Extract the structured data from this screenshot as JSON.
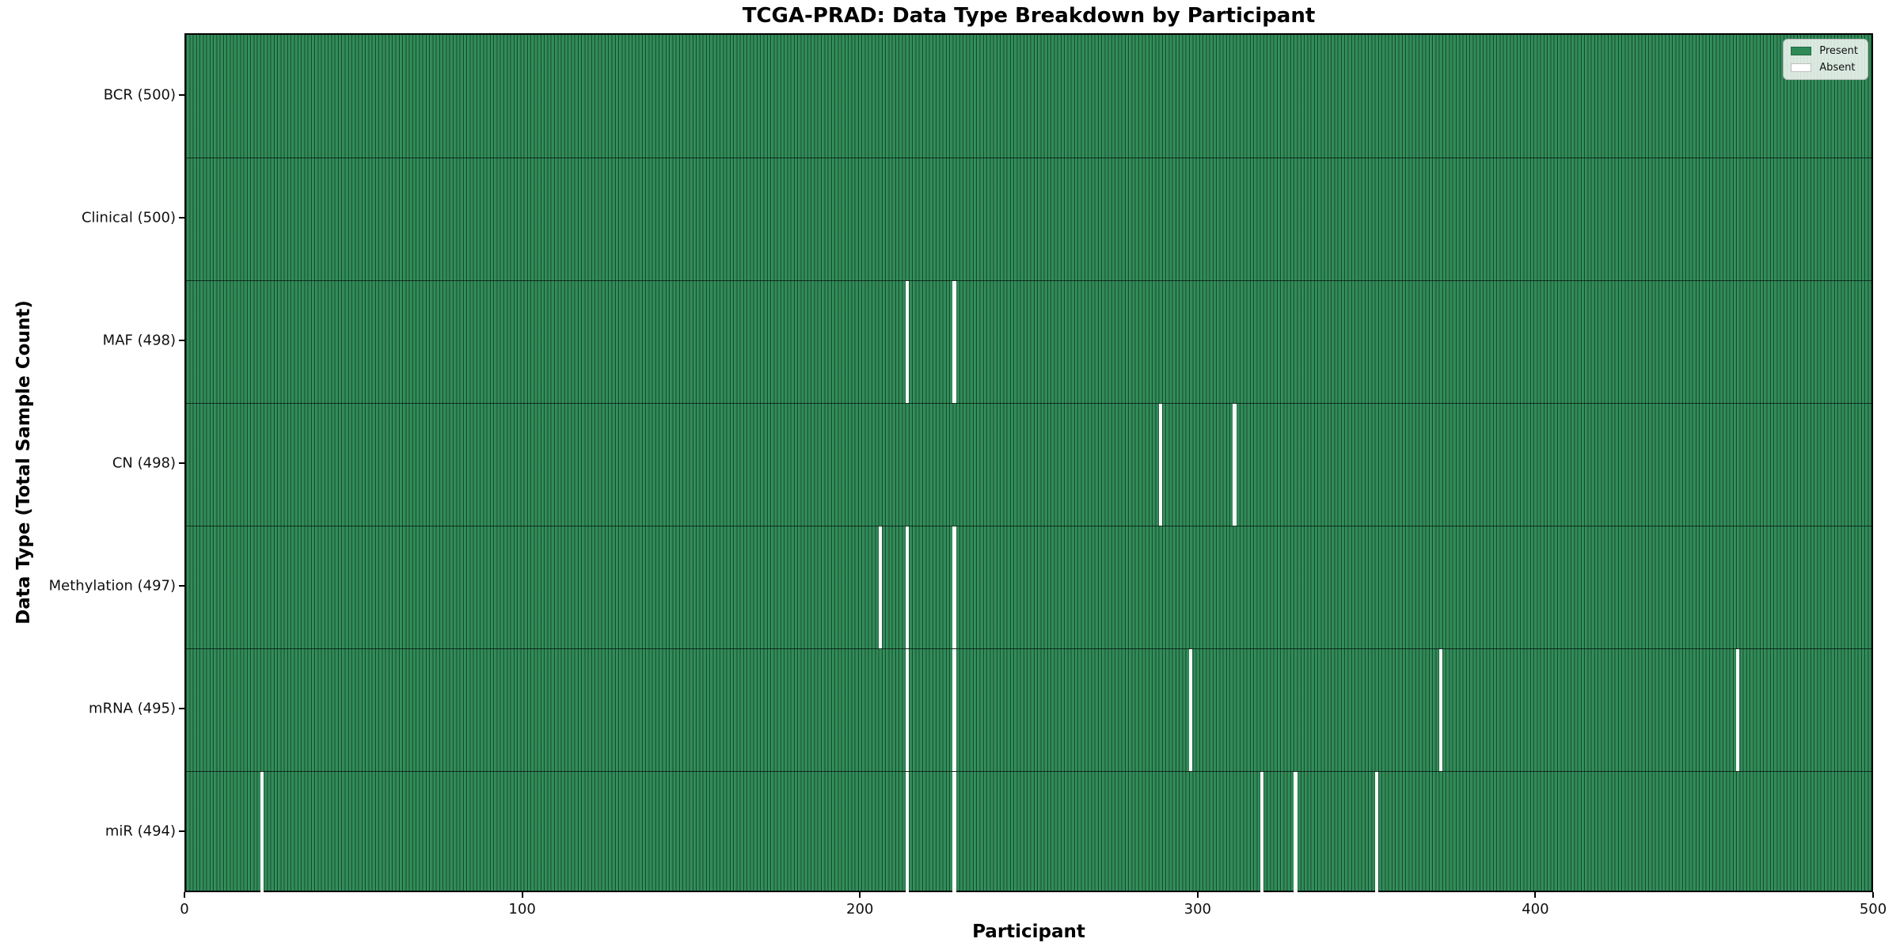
{
  "chart_data": {
    "type": "heatmap",
    "title": "TCGA-PRAD: Data Type Breakdown by Participant",
    "xlabel": "Participant",
    "ylabel": "Data Type (Total Sample Count)",
    "x_ticks": [
      0,
      100,
      200,
      300,
      400,
      500
    ],
    "x_range": [
      0,
      500
    ],
    "n_participants": 500,
    "grid": false,
    "colors": {
      "present": "#2e8b57",
      "absent": "#ffffff"
    },
    "legend": {
      "position": "upper right",
      "entries": [
        {
          "name": "present",
          "label": "Present",
          "color": "#2e8b57"
        },
        {
          "name": "absent",
          "label": "Absent",
          "color": "#ffffff"
        }
      ]
    },
    "rows": [
      {
        "name": "bcr",
        "label": "BCR (500)",
        "data_type": "BCR",
        "total": 500,
        "absent_participants": []
      },
      {
        "name": "clinical",
        "label": "Clinical (500)",
        "data_type": "Clinical",
        "total": 500,
        "absent_participants": []
      },
      {
        "name": "maf",
        "label": "MAF (498)",
        "data_type": "MAF",
        "total": 498,
        "absent_participants": [
          213,
          227
        ]
      },
      {
        "name": "cn",
        "label": "CN (498)",
        "data_type": "CN",
        "total": 498,
        "absent_participants": [
          288,
          310
        ]
      },
      {
        "name": "methylation",
        "label": "Methylation (497)",
        "data_type": "Methylation",
        "total": 497,
        "absent_participants": [
          205,
          213,
          227
        ]
      },
      {
        "name": "mrna",
        "label": "mRNA (495)",
        "data_type": "mRNA",
        "total": 495,
        "absent_participants": [
          213,
          227,
          297,
          371,
          459
        ]
      },
      {
        "name": "mir",
        "label": "miR (494)",
        "data_type": "miR",
        "total": 494,
        "absent_participants": [
          22,
          213,
          227,
          318,
          328,
          352
        ]
      }
    ]
  }
}
